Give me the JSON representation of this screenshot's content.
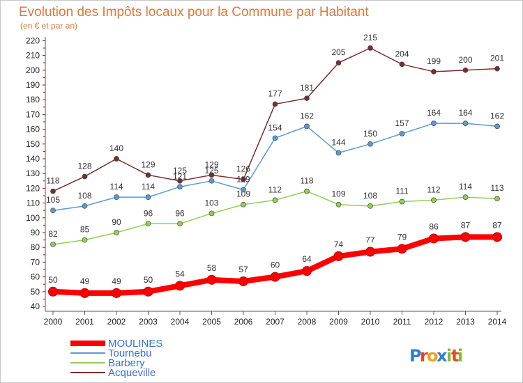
{
  "chart_data": {
    "type": "line",
    "title": "Evolution des Impôts locaux pour la Commune par Habitant",
    "subtitle": "(en € et par an)",
    "xlabel": "",
    "ylabel": "",
    "x": [
      "2000",
      "2001",
      "2002",
      "2003",
      "2004",
      "2005",
      "2006",
      "2007",
      "2008",
      "2009",
      "2010",
      "2011",
      "2012",
      "2013",
      "2014"
    ],
    "ylim": [
      40,
      220
    ],
    "yticks": [
      "40",
      "50",
      "60",
      "70",
      "80",
      "90",
      "100",
      "110",
      "120",
      "130",
      "140",
      "150",
      "160",
      "170",
      "180",
      "190",
      "200",
      "210",
      "220"
    ],
    "grid": false,
    "legend_position": "bottom-left",
    "series": [
      {
        "name": "MOULINES",
        "color": "#ff0000",
        "values": [
          50,
          49,
          49,
          50,
          54,
          58,
          57,
          60,
          64,
          74,
          77,
          79,
          86,
          87,
          87
        ]
      },
      {
        "name": "Tournebu",
        "color": "#5b9bd5",
        "values": [
          105,
          108,
          114,
          114,
          121,
          125,
          119,
          154,
          162,
          144,
          150,
          157,
          164,
          164,
          162
        ]
      },
      {
        "name": "Barbery",
        "color": "#92d050",
        "values": [
          82,
          85,
          90,
          96,
          96,
          103,
          109,
          112,
          118,
          109,
          108,
          111,
          112,
          114,
          113
        ]
      },
      {
        "name": "Acqueville",
        "color": "#7b2c2c",
        "values": [
          118,
          128,
          140,
          129,
          125,
          129,
          126,
          177,
          181,
          205,
          215,
          204,
          199,
          200,
          201
        ]
      }
    ]
  },
  "brand": {
    "logo_text": "Proxiti",
    "logo_letters": [
      "P",
      "r",
      "o",
      "x",
      "i",
      "t",
      "i"
    ],
    "logo_colors": [
      "#2e7fcf",
      "#e9432f",
      "#f0a21a",
      "#2e7fcf",
      "#7cbf2f",
      "#e9432f",
      "#7cbf2f"
    ]
  }
}
